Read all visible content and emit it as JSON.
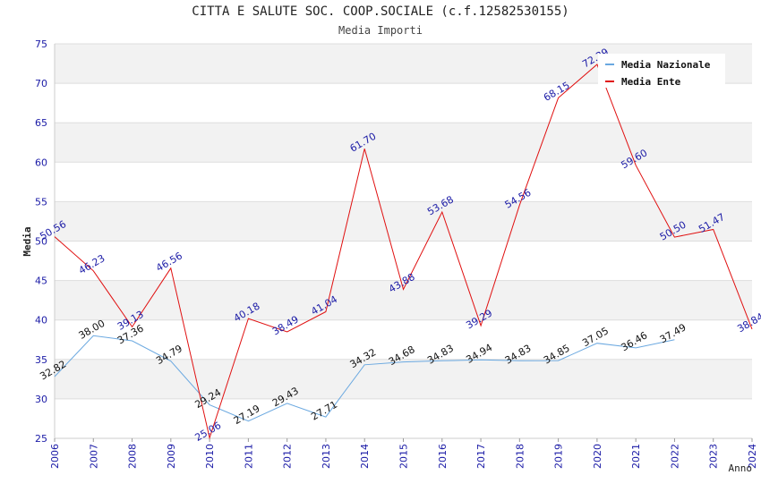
{
  "chart_data": {
    "type": "line",
    "title": "CITTA E SALUTE SOC. COOP.SOCIALE (c.f.12582530155)",
    "subtitle": "Media Importi",
    "xlabel": "Anno",
    "ylabel": "Media",
    "ylim": [
      25,
      75
    ],
    "yticks": [
      "25",
      "30",
      "35",
      "40",
      "45",
      "50",
      "55",
      "60",
      "65",
      "70",
      "75"
    ],
    "x": [
      "2006",
      "2007",
      "2008",
      "2009",
      "2010",
      "2011",
      "2012",
      "2013",
      "2014",
      "2015",
      "2016",
      "2017",
      "2018",
      "2019",
      "2020",
      "2021",
      "2022",
      "2023",
      "2024"
    ],
    "grid": true,
    "legend_position": "top-right",
    "series": [
      {
        "name": "Media Nazionale",
        "color": "#6aa8e0",
        "values": [
          32.82,
          38.0,
          37.36,
          34.79,
          29.24,
          27.19,
          29.43,
          27.71,
          34.32,
          34.68,
          34.83,
          34.94,
          34.83,
          34.85,
          37.05,
          36.46,
          37.49,
          null,
          null
        ],
        "labels": [
          "32.82",
          "38.00",
          "37.36",
          "34.79",
          "29.24",
          "27.19",
          "29.43",
          "27.71",
          "34.32",
          "34.68",
          "34.83",
          "34.94",
          "34.83",
          "34.85",
          "37.05",
          "36.46",
          "37.49",
          "",
          ""
        ]
      },
      {
        "name": "Media Ente",
        "color": "#e01010",
        "values": [
          50.56,
          46.23,
          39.13,
          46.56,
          25.06,
          40.18,
          38.49,
          41.04,
          61.7,
          43.88,
          53.68,
          39.29,
          54.56,
          68.15,
          72.39,
          59.6,
          50.5,
          51.47,
          38.84
        ],
        "labels": [
          "50.56",
          "46.23",
          "39.13",
          "46.56",
          "25.06",
          "40.18",
          "38.49",
          "41.04",
          "61.70",
          "43.88",
          "53.68",
          "39.29",
          "54.56",
          "68.15",
          "72.39",
          "59.60",
          "50.50",
          "51.47",
          "38.84"
        ]
      }
    ]
  }
}
